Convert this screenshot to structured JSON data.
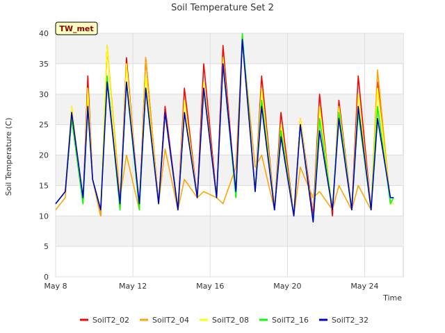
{
  "chart_data": {
    "type": "line",
    "title": "Soil Temperature Set 2",
    "xlabel": "Time",
    "ylabel": "Soil Temperature (C)",
    "ylim": [
      0,
      40
    ],
    "yticks": [
      0,
      5,
      10,
      15,
      20,
      25,
      30,
      35,
      40
    ],
    "xlim": [
      "2024-05-08",
      "2024-05-26"
    ],
    "xticks": [
      {
        "label": "May 8",
        "date": "2024-05-08"
      },
      {
        "label": "May 12",
        "date": "2024-05-12"
      },
      {
        "label": "May 16",
        "date": "2024-05-16"
      },
      {
        "label": "May 20",
        "date": "2024-05-20"
      },
      {
        "label": "May 24",
        "date": "2024-05-24"
      }
    ],
    "grid": true,
    "banded_background": true,
    "annotation": "TW_met",
    "legend_position": "bottom",
    "x": [
      "2024-05-08 00:00",
      "2024-05-08 12:00",
      "2024-05-08 20:00",
      "2024-05-09 10:00",
      "2024-05-09 16:00",
      "2024-05-09 22:00",
      "2024-05-10 08:00",
      "2024-05-10 16:00",
      "2024-05-11 08:00",
      "2024-05-11 16:00",
      "2024-05-12 08:00",
      "2024-05-12 16:00",
      "2024-05-13 08:00",
      "2024-05-13 16:00",
      "2024-05-14 08:00",
      "2024-05-14 16:00",
      "2024-05-15 08:00",
      "2024-05-15 16:00",
      "2024-05-16 08:00",
      "2024-05-16 16:00",
      "2024-05-17 08:00",
      "2024-05-17 16:00",
      "2024-05-18 08:00",
      "2024-05-18 16:00",
      "2024-05-19 08:00",
      "2024-05-19 16:00",
      "2024-05-20 08:00",
      "2024-05-20 16:00",
      "2024-05-21 08:00",
      "2024-05-21 16:00",
      "2024-05-22 08:00",
      "2024-05-22 16:00",
      "2024-05-23 08:00",
      "2024-05-23 16:00",
      "2024-05-24 08:00",
      "2024-05-24 16:00",
      "2024-05-25 08:00",
      "2024-05-25 12:00"
    ],
    "series": [
      {
        "name": "SoilT2_02",
        "color": "#ff0000",
        "values": [
          12,
          14,
          26,
          12,
          33,
          16,
          10,
          38,
          11,
          36,
          11,
          36,
          12,
          28,
          11,
          31,
          13,
          35,
          13,
          38,
          13,
          39,
          14,
          33,
          11,
          27,
          10,
          26,
          10,
          30,
          10,
          29,
          11,
          33,
          11,
          32,
          12,
          12
        ]
      },
      {
        "name": "SoilT2_04",
        "color": "#ffa500",
        "values": [
          11,
          13,
          28,
          12,
          29,
          16,
          10,
          38,
          13,
          20,
          11,
          36,
          12,
          21,
          11,
          16,
          13,
          14,
          13,
          12,
          18,
          39,
          18,
          20,
          11,
          24,
          10,
          18,
          13,
          14,
          11,
          15,
          11,
          15,
          11,
          34,
          12,
          12
        ]
      },
      {
        "name": "SoilT2_08",
        "color": "#ffff00",
        "values": [
          12,
          14,
          28,
          12,
          31,
          16,
          11,
          38,
          11,
          35,
          11,
          33,
          12,
          27,
          11,
          29,
          13,
          32,
          13,
          36,
          13,
          39,
          14,
          31,
          11,
          25,
          10,
          26,
          9,
          28,
          11,
          28,
          11,
          30,
          11,
          31,
          12,
          12
        ]
      },
      {
        "name": "SoilT2_16",
        "color": "#00ff00",
        "values": [
          12,
          14,
          26,
          12,
          28,
          16,
          11,
          33,
          11,
          32,
          11,
          31,
          12,
          27,
          11,
          27,
          13,
          31,
          13,
          35,
          13,
          40,
          14,
          29,
          11,
          24,
          10,
          25,
          9,
          26,
          11,
          27,
          11,
          27,
          11,
          28,
          12,
          13
        ]
      },
      {
        "name": "SoilT2_32",
        "color": "#0000cc",
        "values": [
          12,
          14,
          27,
          13,
          28,
          16,
          11,
          32,
          12,
          32,
          12,
          31,
          12,
          27,
          11,
          27,
          13,
          31,
          13,
          35,
          14,
          39,
          14,
          28,
          11,
          23,
          10,
          25,
          9,
          24,
          11,
          26,
          11,
          28,
          11,
          26,
          13,
          13
        ]
      }
    ]
  }
}
